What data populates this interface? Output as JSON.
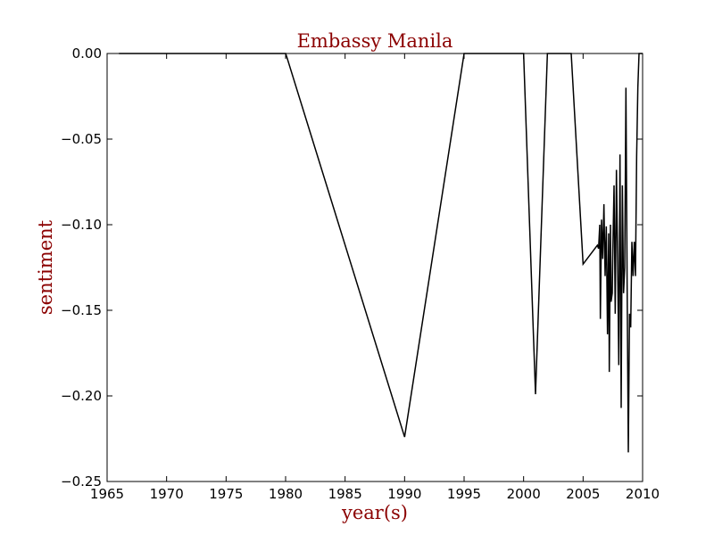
{
  "chart_data": {
    "type": "line",
    "title": "Embassy Manila",
    "xlabel": "year(s)",
    "ylabel": "sentiment",
    "xlim": [
      1965,
      2010
    ],
    "ylim": [
      -0.25,
      0.0
    ],
    "xticks": [
      1965,
      1970,
      1975,
      1980,
      1985,
      1990,
      1995,
      2000,
      2005,
      2010
    ],
    "yticks": [
      0.0,
      -0.05,
      -0.1,
      -0.15,
      -0.2,
      -0.25
    ],
    "xtick_labels": [
      "1965",
      "1970",
      "1975",
      "1980",
      "1985",
      "1990",
      "1995",
      "2000",
      "2005",
      "2010"
    ],
    "ytick_labels": [
      "0.00",
      "−0.05",
      "−0.10",
      "−0.15",
      "−0.20",
      "−0.25"
    ],
    "grid": false,
    "series": [
      {
        "color": "#000000",
        "x": [
          1966.0,
          1980.0,
          1980.1,
          1990.0,
          1995.0,
          2000.0,
          2001.0,
          2002.0,
          2004.0,
          2005.0,
          2006.2,
          2006.3,
          2006.4,
          2006.45,
          2006.55,
          2006.65,
          2006.75,
          2006.85,
          2006.95,
          2007.05,
          2007.15,
          2007.2,
          2007.3,
          2007.35,
          2007.45,
          2007.5,
          2007.6,
          2007.7,
          2007.8,
          2007.9,
          2008.0,
          2008.1,
          2008.2,
          2008.3,
          2008.4,
          2008.5,
          2008.6,
          2008.7,
          2008.8,
          2008.9,
          2009.0,
          2009.1,
          2009.2,
          2009.3,
          2009.4,
          2009.5,
          2009.6,
          2009.7,
          2009.8,
          2009.9,
          2010.0
        ],
        "y": [
          0.0,
          0.0,
          -0.002,
          -0.224,
          0.0,
          0.0,
          -0.199,
          0.0,
          0.0,
          -0.123,
          -0.112,
          -0.114,
          -0.1,
          -0.155,
          -0.097,
          -0.12,
          -0.088,
          -0.13,
          -0.101,
          -0.164,
          -0.105,
          -0.186,
          -0.1,
          -0.145,
          -0.14,
          -0.115,
          -0.077,
          -0.152,
          -0.068,
          -0.12,
          -0.182,
          -0.059,
          -0.207,
          -0.077,
          -0.14,
          -0.125,
          -0.02,
          -0.135,
          -0.233,
          -0.152,
          -0.16,
          -0.11,
          -0.13,
          -0.11,
          -0.13,
          -0.06,
          -0.02,
          0.0,
          0.0,
          0.0,
          0.0
        ]
      }
    ]
  },
  "colors": {
    "title": "#8b0000",
    "axis_labels": "#8b0000",
    "line": "#000000",
    "frame": "#000000"
  }
}
